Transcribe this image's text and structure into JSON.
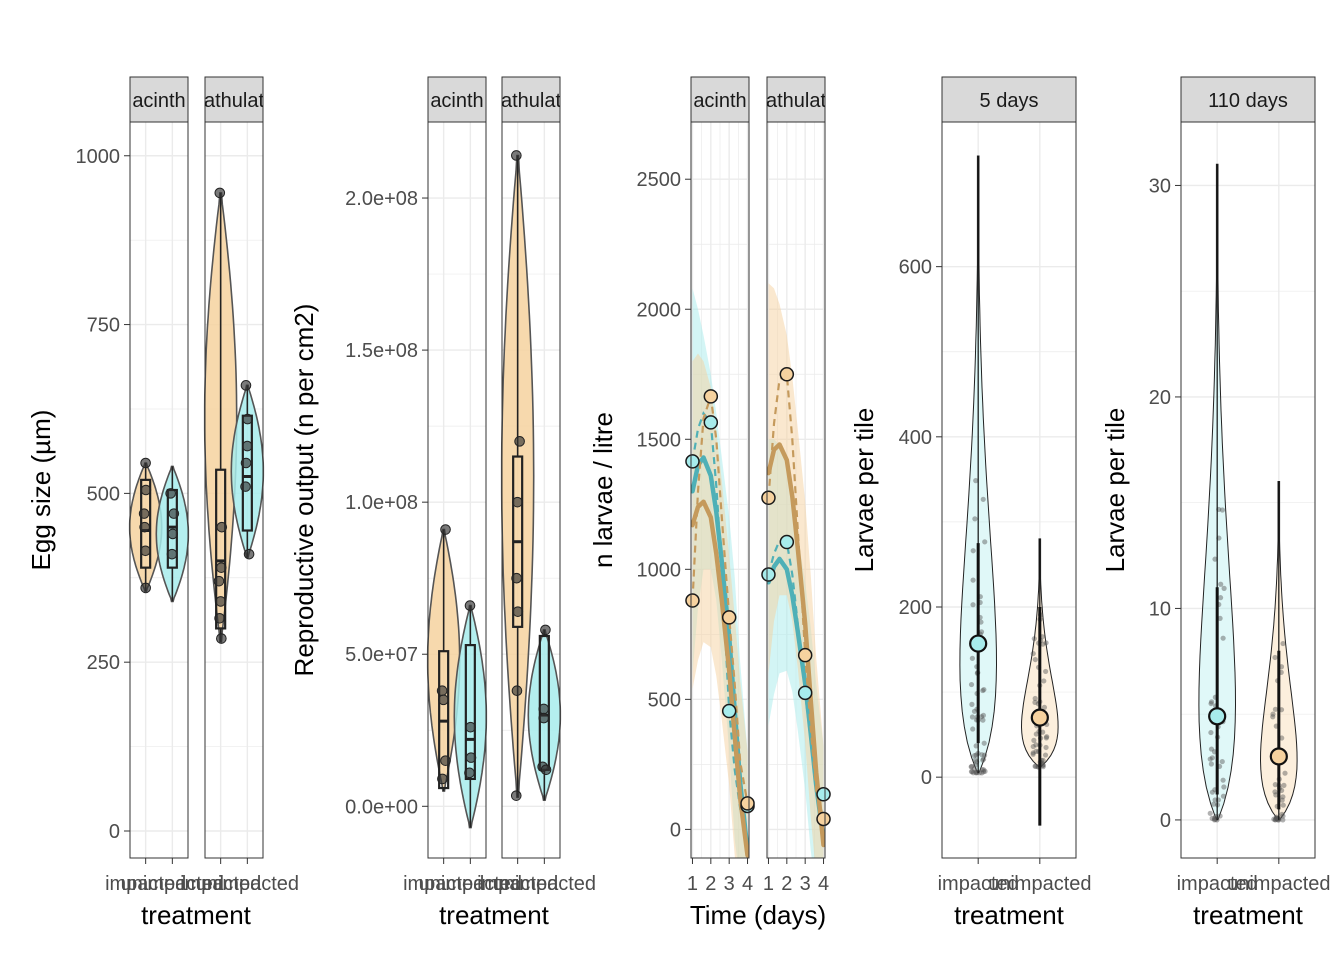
{
  "colors": {
    "impacted_fill": "#a7ecec",
    "unimpacted_fill": "#f6d29f",
    "impacted_line": "#4fb0b7",
    "unimpacted_line": "#c59a5c",
    "strip_bg": "#d9d9d9",
    "grid": "#ebebeb"
  },
  "chart_data": [
    {
      "id": "egg",
      "type": "violin",
      "xlabel": "treatment",
      "ylabel": "Egg size (µm)",
      "ylim": [
        -40,
        1050
      ],
      "yticks": [
        0,
        250,
        500,
        750,
        1000
      ],
      "tick_labels": [
        "0",
        "250",
        "500",
        "750",
        "1000"
      ],
      "categories": [
        "impacted",
        "unimpacted"
      ],
      "facets": [
        {
          "strip": "acinth",
          "groups": [
            {
              "category": "impacted",
              "fill": "unimpacted_fill",
              "values": [
                545,
                505,
                470,
                450,
                415,
                360
              ],
              "box": [
                390,
                445,
                520
              ],
              "min": 355,
              "max": 545
            },
            {
              "category": "unimpacted",
              "fill": "impacted_fill",
              "values": [
                500,
                470,
                440,
                410
              ],
              "box": [
                390,
                450,
                505
              ],
              "min": 340,
              "max": 540
            }
          ]
        },
        {
          "strip": "athulat",
          "groups": [
            {
              "category": "impacted",
              "fill": "unimpacted_fill",
              "values": [
                945,
                450,
                390,
                370,
                340,
                315,
                285
              ],
              "box": [
                300,
                400,
                535
              ],
              "min": 280,
              "max": 945
            },
            {
              "category": "unimpacted",
              "fill": "impacted_fill",
              "values": [
                660,
                610,
                570,
                545,
                510,
                410
              ],
              "box": [
                445,
                525,
                615
              ],
              "min": 405,
              "max": 660
            }
          ]
        }
      ]
    },
    {
      "id": "repro",
      "type": "violin",
      "xlabel": "treatment",
      "ylabel": "Reproductive output (n per cm2)",
      "ylim": [
        -17000000,
        225000000
      ],
      "yticks": [
        0,
        50000000,
        100000000,
        150000000,
        200000000
      ],
      "tick_labels": [
        "0.0e+00",
        "5.0e+07",
        "1.0e+08",
        "1.5e+08",
        "2.0e+08"
      ],
      "categories": [
        "impacted",
        "unimpacted"
      ],
      "facets": [
        {
          "strip": "acinth",
          "groups": [
            {
              "category": "impacted",
              "fill": "unimpacted_fill",
              "values": [
                91000000,
                38000000,
                35000000,
                15000000,
                9000000
              ],
              "box": [
                6000000,
                28000000,
                51000000
              ],
              "min": 5000000,
              "max": 91000000
            },
            {
              "category": "unimpacted",
              "fill": "impacted_fill",
              "values": [
                66000000,
                26000000,
                16000000,
                11000000
              ],
              "box": [
                9000000,
                22000000,
                53000000
              ],
              "min": -7000000,
              "max": 66000000
            }
          ]
        },
        {
          "strip": "athulat",
          "groups": [
            {
              "category": "impacted",
              "fill": "unimpacted_fill",
              "values": [
                214000000,
                120000000,
                100000000,
                75000000,
                64000000,
                38000000,
                3500000
              ],
              "box": [
                59000000,
                87000000,
                115000000
              ],
              "min": 3000000,
              "max": 214000000
            },
            {
              "category": "unimpacted",
              "fill": "impacted_fill",
              "values": [
                58000000,
                32000000,
                29000000,
                13000000,
                12000000
              ],
              "box": [
                12000000,
                30000000,
                56000000
              ],
              "min": 2000000,
              "max": 58000000
            }
          ]
        }
      ]
    },
    {
      "id": "larvae",
      "type": "line",
      "xlabel": "Time (days)",
      "ylabel": "n larvae / litre",
      "ylim": [
        -110,
        2720
      ],
      "xlim": [
        0.92,
        4.08
      ],
      "yticks": [
        0,
        500,
        1000,
        1500,
        2000,
        2500
      ],
      "tick_labels": [
        "0",
        "500",
        "1000",
        "1500",
        "2000",
        "2500"
      ],
      "xticks": [
        1,
        2,
        3,
        4
      ],
      "xtick_labels": [
        "1",
        "2",
        "3",
        "4"
      ],
      "facets": [
        {
          "strip": "acinth",
          "series": [
            {
              "fill": "impacted_fill",
              "line": "impacted_line",
              "points": {
                "x": [
                  1,
                  2,
                  3,
                  4
                ],
                "y": [
                  1415,
                  1565,
                  455,
                  90
                ]
              },
              "dashed": {
                "x": [
                  1,
                  1.3,
                  1.6,
                  2,
                  2.3,
                  2.6,
                  3,
                  3.3,
                  3.6,
                  4
                ],
                "y": [
                  1415,
                  1540,
                  1600,
                  1565,
                  1320,
                  1000,
                  455,
                  230,
                  80,
                  90
                ]
              },
              "smooth": {
                "x": [
                  1,
                  1.3,
                  1.6,
                  2,
                  2.3,
                  2.6,
                  3,
                  3.3,
                  3.6,
                  4
                ],
                "y": [
                  1300,
                  1400,
                  1430,
                  1360,
                  1220,
                  1030,
                  740,
                  460,
                  180,
                  -80
                ]
              },
              "ribbon_lo": [
                600,
                850,
                1000,
                1000,
                880,
                650,
                300,
                -40,
                -200,
                -400
              ],
              "ribbon_hi": [
                2080,
                2000,
                1900,
                1750,
                1600,
                1430,
                1200,
                970,
                640,
                300
              ]
            },
            {
              "fill": "unimpacted_fill",
              "line": "unimpacted_line",
              "points": {
                "x": [
                  1,
                  2,
                  4
                ],
                "y": [
                  880,
                  1665,
                  100
                ]
              },
              "extra_points": {
                "x": [
                  3
                ],
                "y": [
                  815
                ]
              },
              "dashed": {
                "x": [
                  1,
                  1.3,
                  1.6,
                  2,
                  2.3,
                  2.6,
                  3,
                  3.3,
                  3.6,
                  4
                ],
                "y": [
                  880,
                  1300,
                  1580,
                  1665,
                  1500,
                  1200,
                  815,
                  560,
                  260,
                  100
                ]
              },
              "smooth": {
                "x": [
                  1,
                  1.3,
                  1.6,
                  2,
                  2.3,
                  2.6,
                  3,
                  3.3,
                  3.6,
                  4
                ],
                "y": [
                  1170,
                  1240,
                  1260,
                  1200,
                  1060,
                  880,
                  610,
                  360,
                  120,
                  -100
                ]
              },
              "ribbon_lo": [
                540,
                650,
                720,
                700,
                590,
                420,
                170,
                -100,
                -330,
                -500
              ],
              "ribbon_hi": [
                1800,
                1830,
                1800,
                1700,
                1530,
                1340,
                1050,
                820,
                570,
                300
              ]
            }
          ]
        },
        {
          "strip": "athulat",
          "series": [
            {
              "fill": "impacted_fill",
              "line": "impacted_line",
              "points": {
                "x": [
                  1,
                  2,
                  3,
                  4
                ],
                "y": [
                  980,
                  1105,
                  525,
                  135
                ]
              },
              "dashed": {
                "x": [
                  1,
                  1.3,
                  1.6,
                  2,
                  2.3,
                  2.6,
                  3,
                  3.3,
                  3.6,
                  4
                ],
                "y": [
                  980,
                  1060,
                  1110,
                  1105,
                  980,
                  790,
                  525,
                  340,
                  170,
                  135
                ]
              },
              "smooth": {
                "x": [
                  1,
                  1.3,
                  1.6,
                  2,
                  2.3,
                  2.6,
                  3,
                  3.3,
                  3.6,
                  4
                ],
                "y": [
                  950,
                  1010,
                  1040,
                  1000,
                  900,
                  760,
                  560,
                  370,
                  170,
                  -40
                ]
              },
              "ribbon_lo": [
                400,
                520,
                600,
                610,
                530,
                380,
                150,
                -80,
                -250,
                -450
              ],
              "ribbon_hi": [
                1500,
                1500,
                1480,
                1400,
                1280,
                1130,
                950,
                780,
                560,
                320
              ]
            },
            {
              "fill": "unimpacted_fill",
              "line": "unimpacted_line",
              "points": {
                "x": [
                  1,
                  2,
                  3,
                  4
                ],
                "y": [
                  1275,
                  1750,
                  670,
                  40
                ]
              },
              "dashed": {
                "x": [
                  1,
                  1.3,
                  1.6,
                  2,
                  2.3,
                  2.6,
                  3,
                  3.3,
                  3.6,
                  4
                ],
                "y": [
                  1275,
                  1560,
                  1730,
                  1750,
                  1500,
                  1150,
                  670,
                  390,
                  150,
                  40
                ]
              },
              "smooth": {
                "x": [
                  1,
                  1.3,
                  1.6,
                  2,
                  2.3,
                  2.6,
                  3,
                  3.3,
                  3.6,
                  4
                ],
                "y": [
                  1370,
                  1460,
                  1480,
                  1420,
                  1280,
                  1080,
                  790,
                  500,
                  220,
                  -60
                ]
              },
              "ribbon_lo": [
                600,
                800,
                900,
                900,
                800,
                620,
                330,
                50,
                -180,
                -400
              ],
              "ribbon_hi": [
                2100,
                2080,
                2020,
                1900,
                1740,
                1540,
                1260,
                980,
                660,
                320
              ]
            }
          ]
        }
      ]
    },
    {
      "id": "tile5",
      "type": "violin",
      "strip": "5 days",
      "xlabel": "treatment",
      "ylabel": "Larvae per tile",
      "ylim": [
        -95,
        770
      ],
      "yticks": [
        0,
        200,
        400,
        600
      ],
      "tick_labels": [
        "0",
        "200",
        "400",
        "600"
      ],
      "categories": [
        "impacted",
        "unimpacted"
      ],
      "groups": [
        {
          "category": "impacted",
          "fill": "impacted_fill",
          "mean": 157,
          "ci": [
            40,
            275
          ],
          "range": [
            5,
            730
          ],
          "n_jitter": 60,
          "spread": 380
        },
        {
          "category": "unimpacted",
          "fill": "unimpacted_fill",
          "mean": 70,
          "ci": [
            -57,
            200
          ],
          "range": [
            12,
            280
          ],
          "n_jitter": 50,
          "spread": 190
        }
      ]
    },
    {
      "id": "tile110",
      "type": "violin",
      "strip": "110 days",
      "xlabel": "treatment",
      "ylabel": "Larvae per tile",
      "ylim": [
        -1.8,
        33
      ],
      "yticks": [
        0,
        10,
        20,
        30
      ],
      "tick_labels": [
        "0",
        "10",
        "20",
        "30"
      ],
      "categories": [
        "impacted",
        "unimpacted"
      ],
      "groups": [
        {
          "category": "impacted",
          "fill": "impacted_fill",
          "mean": 4.9,
          "ci": [
            1.2,
            11
          ],
          "range": [
            0,
            31
          ],
          "n_jitter": 45,
          "spread": 16
        },
        {
          "category": "unimpacted",
          "fill": "unimpacted_fill",
          "mean": 3,
          "ci": [
            0.5,
            8
          ],
          "range": [
            0,
            16
          ],
          "n_jitter": 40,
          "spread": 9
        }
      ]
    }
  ]
}
